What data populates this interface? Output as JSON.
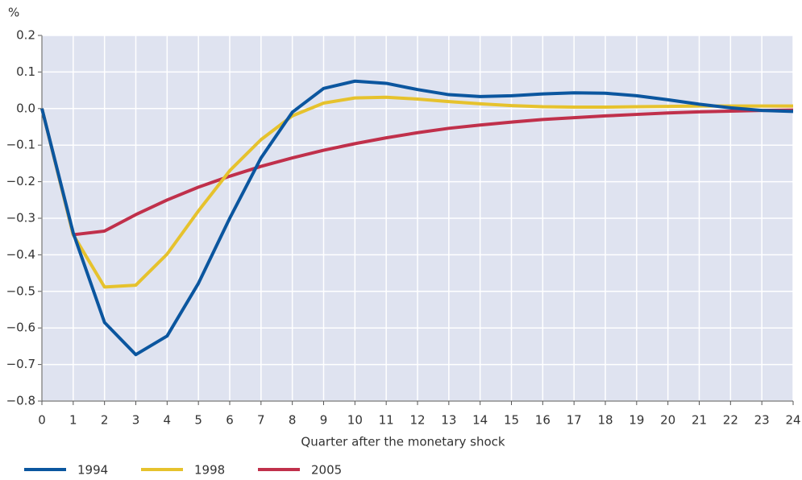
{
  "chart_data": {
    "type": "line",
    "y_label": "%",
    "x_label": "Quarter after the monetary shock",
    "x": [
      0,
      1,
      2,
      3,
      4,
      5,
      6,
      7,
      8,
      9,
      10,
      11,
      12,
      13,
      14,
      15,
      16,
      17,
      18,
      19,
      20,
      21,
      22,
      23,
      24
    ],
    "xlim": [
      0,
      24
    ],
    "xticks": [
      0,
      1,
      2,
      3,
      4,
      5,
      6,
      7,
      8,
      9,
      10,
      11,
      12,
      13,
      14,
      15,
      16,
      17,
      18,
      19,
      20,
      21,
      22,
      23,
      24
    ],
    "ylim": [
      -0.8,
      0.2
    ],
    "yticks": [
      0.2,
      0.1,
      {
        "value": 0,
        "label": "0.0"
      },
      {
        "value": -0.1,
        "label": "−0.1"
      },
      {
        "value": -0.2,
        "label": "−0.2"
      },
      {
        "value": -0.3,
        "label": "−0.3"
      },
      {
        "value": -0.4,
        "label": "−0.4"
      },
      {
        "value": -0.5,
        "label": "−0.5"
      },
      {
        "value": -0.6,
        "label": "−0.6"
      },
      {
        "value": -0.7,
        "label": "−0.7"
      },
      {
        "value": -0.8,
        "label": "−0.8"
      }
    ],
    "grid": true,
    "legend": "bottom-left",
    "series": [
      {
        "name": "1994",
        "color": "#0b569f",
        "values": [
          0,
          -0.34,
          -0.585,
          -0.673,
          -0.622,
          -0.478,
          -0.3,
          -0.135,
          -0.01,
          0.055,
          0.075,
          0.069,
          0.052,
          0.038,
          0.033,
          0.035,
          0.04,
          0.043,
          0.042,
          0.035,
          0.024,
          0.012,
          0.002,
          -0.005,
          -0.008
        ]
      },
      {
        "name": "1998",
        "color": "#e6c22d",
        "values": [
          0,
          -0.345,
          -0.488,
          -0.483,
          -0.398,
          -0.28,
          -0.17,
          -0.085,
          -0.02,
          0.015,
          0.029,
          0.031,
          0.026,
          0.019,
          0.013,
          0.008,
          0.005,
          0.004,
          0.004,
          0.005,
          0.006,
          0.007,
          0.007,
          0.007,
          0.007
        ]
      },
      {
        "name": "2005",
        "color": "#c0304b",
        "values": [
          0,
          -0.345,
          -0.335,
          -0.29,
          -0.25,
          -0.215,
          -0.185,
          -0.158,
          -0.135,
          -0.114,
          -0.096,
          -0.08,
          -0.066,
          -0.054,
          -0.045,
          -0.037,
          -0.03,
          -0.025,
          -0.02,
          -0.016,
          -0.012,
          -0.009,
          -0.007,
          -0.005,
          -0.004
        ]
      }
    ]
  }
}
